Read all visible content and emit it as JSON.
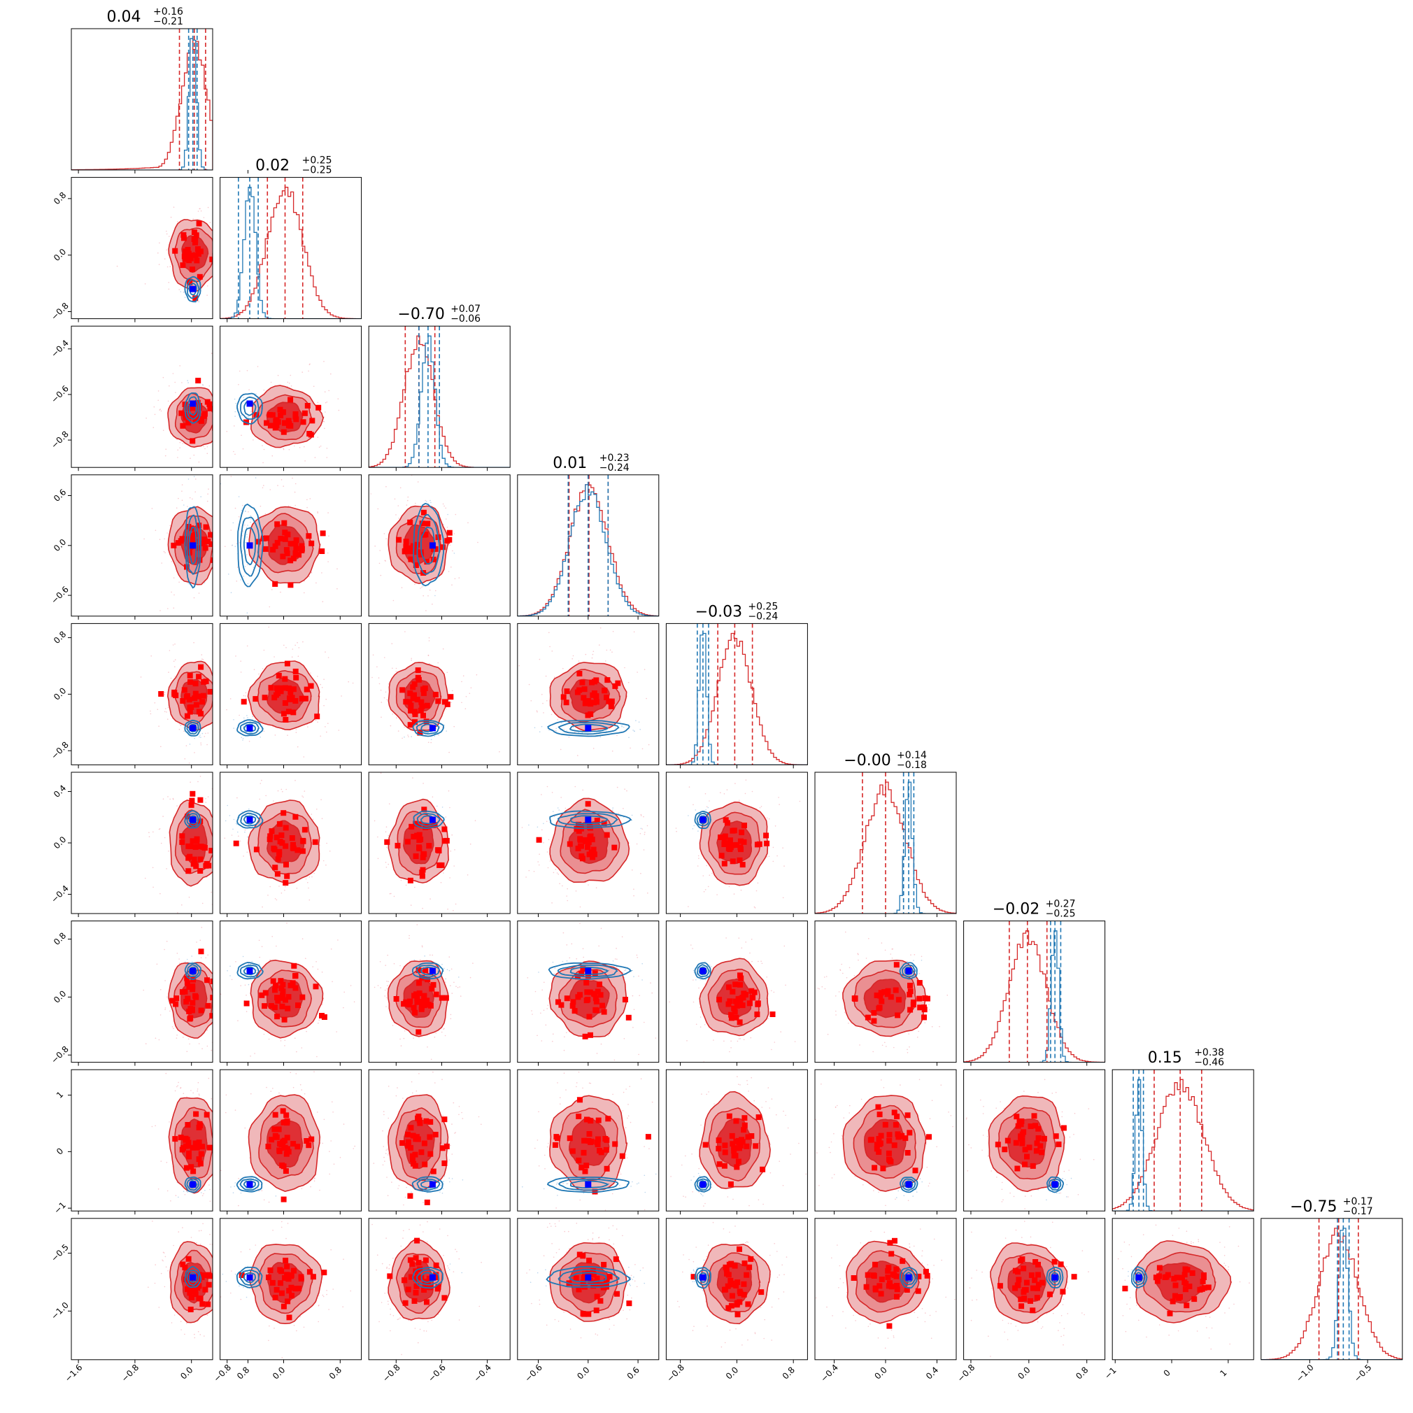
{
  "chart_data": {
    "type": "corner",
    "n_params": 9,
    "colors": {
      "red": "#d62728",
      "blue": "#1f77b4",
      "truth_red": "#ff0000",
      "truth_blue": "#0000ff"
    },
    "titles": [
      {
        "value": "0.04",
        "plus": "+0.16",
        "minus": "−0.21"
      },
      {
        "value": "0.02",
        "plus": "+0.25",
        "minus": "−0.25"
      },
      {
        "value": "−0.70",
        "plus": "+0.07",
        "minus": "−0.06"
      },
      {
        "value": "0.01",
        "plus": "+0.23",
        "minus": "−0.24"
      },
      {
        "value": "−0.03",
        "plus": "+0.25",
        "minus": "−0.24"
      },
      {
        "value": "−0.00",
        "plus": "+0.14",
        "minus": "−0.18"
      },
      {
        "value": "−0.02",
        "plus": "+0.27",
        "minus": "−0.25"
      },
      {
        "value": "0.15",
        "plus": "+0.38",
        "minus": "−0.46"
      },
      {
        "value": "−0.75",
        "plus": "+0.17",
        "minus": "−0.17"
      }
    ],
    "ranges": [
      [
        -1.7,
        0.3
      ],
      [
        -0.9,
        1.1
      ],
      [
        -0.92,
        -0.3
      ],
      [
        -0.85,
        0.85
      ],
      [
        -1.0,
        1.0
      ],
      [
        -0.55,
        0.55
      ],
      [
        -0.9,
        1.05
      ],
      [
        -1.05,
        1.45
      ],
      [
        -1.42,
        -0.2
      ]
    ],
    "ticks": [
      {
        "values": [
          -1.6,
          -0.8,
          0.0,
          0.8
        ],
        "labels": [
          "−1.6",
          "−0.8",
          "0.0",
          "0.8"
        ]
      },
      {
        "values": [
          -0.8,
          0.0,
          0.8
        ],
        "labels": [
          "−0.8",
          "0.0",
          "0.8"
        ]
      },
      {
        "values": [
          -0.8,
          -0.6,
          -0.4
        ],
        "labels": [
          "−0.8",
          "−0.6",
          "−0.4"
        ]
      },
      {
        "values": [
          -0.6,
          0.0,
          0.6
        ],
        "labels": [
          "−0.6",
          "0.0",
          "0.6"
        ]
      },
      {
        "values": [
          -0.8,
          0.0,
          0.8
        ],
        "labels": [
          "−0.8",
          "0.0",
          "0.8"
        ]
      },
      {
        "values": [
          -0.4,
          0.0,
          0.4
        ],
        "labels": [
          "−0.4",
          "0.0",
          "0.4"
        ]
      },
      {
        "values": [
          -0.8,
          0.0,
          0.8
        ],
        "labels": [
          "−0.8",
          "0.0",
          "0.8"
        ]
      },
      {
        "values": [
          -1,
          0,
          1
        ],
        "labels": [
          "−1",
          "0",
          "1"
        ]
      },
      {
        "values": [
          -1.0,
          -0.5
        ],
        "labels": [
          "−1.0",
          "−0.5"
        ]
      }
    ],
    "red_posterior": {
      "median": [
        0.04,
        0.02,
        -0.7,
        0.01,
        -0.03,
        -0.0,
        -0.02,
        0.15,
        -0.75
      ],
      "lower": [
        -0.17,
        -0.23,
        -0.76,
        -0.23,
        -0.27,
        -0.18,
        -0.27,
        -0.31,
        -0.92
      ],
      "upper": [
        0.2,
        0.27,
        -0.63,
        0.24,
        0.22,
        0.14,
        0.25,
        0.53,
        -0.58
      ],
      "sigma": [
        0.18,
        0.25,
        0.065,
        0.23,
        0.24,
        0.16,
        0.26,
        0.42,
        0.17
      ]
    },
    "blue_posterior": {
      "median": [
        0.02,
        -0.48,
        -0.66,
        0.0,
        -0.48,
        0.18,
        0.36,
        -0.58,
        -0.71
      ],
      "lower": [
        -0.04,
        -0.64,
        -0.7,
        -0.24,
        -0.56,
        0.14,
        0.3,
        -0.68,
        -0.76
      ],
      "upper": [
        0.08,
        -0.36,
        -0.61,
        0.24,
        -0.4,
        0.22,
        0.44,
        -0.5,
        -0.66
      ],
      "sigma": [
        0.05,
        0.08,
        0.03,
        0.22,
        0.05,
        0.03,
        0.05,
        0.06,
        0.04
      ]
    },
    "truth_point": [
      0.02,
      -0.48,
      -0.64,
      0.0,
      -0.48,
      0.18,
      0.36,
      -0.58,
      -0.71
    ]
  }
}
